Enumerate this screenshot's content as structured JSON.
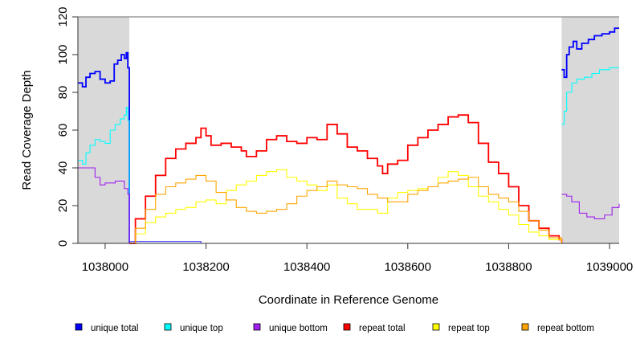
{
  "chart_data": {
    "type": "line",
    "title": "",
    "xlabel": "Coordinate in Reference Genome",
    "ylabel": "Read Coverage Depth",
    "xlim": [
      1037946,
      1039019
    ],
    "ylim": [
      0,
      120
    ],
    "xticks": [
      1038000,
      1038200,
      1038400,
      1038600,
      1038800,
      1039000
    ],
    "xtick_labels": [
      "1038000",
      "1038200",
      "1038400",
      "1038600",
      "1038800",
      "1039000"
    ],
    "yticks": [
      0,
      20,
      40,
      60,
      80,
      100,
      120
    ],
    "ytick_labels": [
      "0",
      "20",
      "40",
      "60",
      "80",
      "100",
      "120"
    ],
    "shaded_regions": [
      [
        1037946,
        1038048
      ],
      [
        1038905,
        1039019
      ]
    ],
    "legend_position": "bottom",
    "series": [
      {
        "name": "unique total",
        "color": "#0000ff",
        "segments": [
          {
            "x": [
              1037946,
              1037955,
              1037962,
              1037970,
              1037980,
              1037990,
              1038000,
              1038010,
              1038018,
              1038025,
              1038032,
              1038038,
              1038042,
              1038045,
              1038048
            ],
            "y": [
              85,
              83,
              88,
              90,
              91,
              87,
              85,
              86,
              95,
              97,
              100,
              98,
              101,
              93,
              0
            ]
          },
          {
            "x": [
              1038905,
              1038910,
              1038915,
              1038920,
              1038928,
              1038935,
              1038945,
              1038958,
              1038970,
              1038985,
              1039000,
              1039010,
              1039019
            ],
            "y": [
              92,
              88,
              100,
              104,
              107,
              103,
              106,
              108,
              110,
              111,
              112,
              114,
              114
            ]
          }
        ]
      },
      {
        "name": "unique top",
        "color": "#00ffff",
        "segments": [
          {
            "x": [
              1037946,
              1037955,
              1037962,
              1037970,
              1037980,
              1037990,
              1038000,
              1038010,
              1038020,
              1038030,
              1038038,
              1038042,
              1038045,
              1038048
            ],
            "y": [
              44,
              42,
              48,
              52,
              55,
              54,
              53,
              60,
              63,
              66,
              68,
              72,
              65,
              0
            ]
          },
          {
            "x": [
              1038905,
              1038910,
              1038915,
              1038925,
              1038935,
              1038950,
              1038965,
              1038980,
              1039000,
              1039019
            ],
            "y": [
              63,
              70,
              80,
              85,
              87,
              88,
              90,
              92,
              93,
              93
            ]
          }
        ]
      },
      {
        "name": "unique bottom",
        "color": "#a020f0",
        "segments": [
          {
            "x": [
              1037946,
              1037975,
              1037980,
              1037990,
              1038000,
              1038020,
              1038030,
              1038038,
              1038045,
              1038048
            ],
            "y": [
              40,
              40,
              35,
              31,
              32,
              33,
              33,
              29,
              26,
              0
            ]
          },
          {
            "x": [
              1038905,
              1038915,
              1038925,
              1038940,
              1038955,
              1038970,
              1038990,
              1039005,
              1039019
            ],
            "y": [
              26,
              25,
              22,
              16,
              14,
              13,
              15,
              19,
              21
            ]
          }
        ]
      },
      {
        "name": "unique total (middle)",
        "color": "#4040ff",
        "segments": [
          {
            "x": [
              1038048,
              1038190,
              1038190,
              1038905
            ],
            "y": [
              1,
              1,
              0,
              0
            ]
          }
        ]
      },
      {
        "name": "repeat total",
        "color": "#ff0000",
        "segments": [
          {
            "x": [
              1038048,
              1038060,
              1038080,
              1038100,
              1038120,
              1038140,
              1038160,
              1038180,
              1038190,
              1038200,
              1038210,
              1038230,
              1038250,
              1038270,
              1038280,
              1038300,
              1038320,
              1038340,
              1038360,
              1038380,
              1038400,
              1038420,
              1038440,
              1038460,
              1038480,
              1038500,
              1038520,
              1038540,
              1038550,
              1038560,
              1038580,
              1038600,
              1038620,
              1038640,
              1038660,
              1038680,
              1038700,
              1038720,
              1038740,
              1038760,
              1038780,
              1038800,
              1038820,
              1038840,
              1038860,
              1038880,
              1038900,
              1038905
            ],
            "y": [
              0,
              13,
              25,
              36,
              45,
              50,
              53,
              56,
              61,
              57,
              52,
              53,
              51,
              49,
              46,
              49,
              55,
              57,
              54,
              53,
              56,
              55,
              63,
              58,
              51,
              49,
              45,
              41,
              37,
              42,
              44,
              52,
              56,
              60,
              63,
              67,
              68,
              64,
              53,
              43,
              37,
              30,
              20,
              12,
              8,
              4,
              2,
              0
            ]
          }
        ]
      },
      {
        "name": "repeat top",
        "color": "#ffff00",
        "segments": [
          {
            "x": [
              1038048,
              1038060,
              1038080,
              1038100,
              1038120,
              1038140,
              1038160,
              1038180,
              1038200,
              1038220,
              1038240,
              1038260,
              1038280,
              1038300,
              1038320,
              1038340,
              1038360,
              1038380,
              1038400,
              1038420,
              1038440,
              1038460,
              1038480,
              1038500,
              1038520,
              1038540,
              1038560,
              1038580,
              1038600,
              1038620,
              1038640,
              1038660,
              1038680,
              1038700,
              1038720,
              1038740,
              1038760,
              1038780,
              1038800,
              1038820,
              1038840,
              1038860,
              1038880,
              1038905
            ],
            "y": [
              0,
              5,
              11,
              14,
              16,
              18,
              19,
              22,
              23,
              21,
              28,
              31,
              33,
              36,
              38,
              39,
              35,
              33,
              31,
              28,
              31,
              24,
              21,
              18,
              18,
              16,
              24,
              27,
              28,
              29,
              30,
              35,
              38,
              36,
              30,
              25,
              22,
              18,
              15,
              10,
              6,
              4,
              2,
              0
            ]
          }
        ]
      },
      {
        "name": "repeat bottom",
        "color": "#ffa500",
        "segments": [
          {
            "x": [
              1038048,
              1038060,
              1038080,
              1038100,
              1038120,
              1038140,
              1038160,
              1038180,
              1038200,
              1038220,
              1038240,
              1038260,
              1038280,
              1038300,
              1038320,
              1038340,
              1038360,
              1038380,
              1038400,
              1038420,
              1038440,
              1038460,
              1038480,
              1038500,
              1038520,
              1038540,
              1038560,
              1038580,
              1038600,
              1038620,
              1038640,
              1038660,
              1038680,
              1038700,
              1038720,
              1038740,
              1038760,
              1038780,
              1038800,
              1038820,
              1038840,
              1038860,
              1038880,
              1038905
            ],
            "y": [
              0,
              8,
              18,
              26,
              30,
              32,
              34,
              36,
              33,
              27,
              23,
              19,
              17,
              16,
              17,
              18,
              21,
              25,
              28,
              30,
              33,
              31,
              30,
              29,
              26,
              24,
              22,
              22,
              26,
              28,
              30,
              32,
              33,
              34,
              35,
              30,
              26,
              24,
              22,
              17,
              12,
              7,
              3,
              0
            ]
          }
        ]
      }
    ],
    "legend": [
      {
        "label": "unique total",
        "color": "#0000ff"
      },
      {
        "label": "unique top",
        "color": "#00ffff"
      },
      {
        "label": "unique bottom",
        "color": "#a020f0"
      },
      {
        "label": "repeat total",
        "color": "#ff0000"
      },
      {
        "label": "repeat top",
        "color": "#ffff00"
      },
      {
        "label": "repeat bottom",
        "color": "#ffa500"
      }
    ]
  }
}
